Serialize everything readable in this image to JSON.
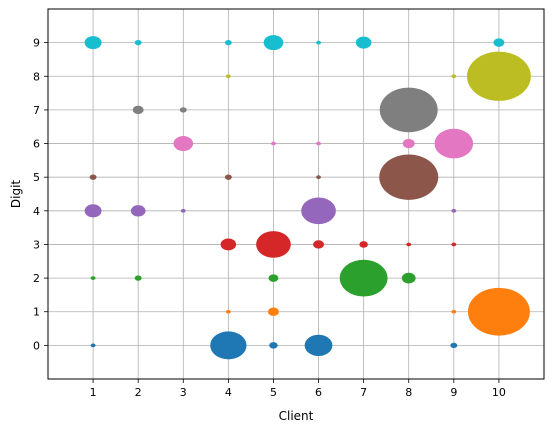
{
  "chart_data": {
    "type": "scatter",
    "title": "",
    "xlabel": "Client",
    "ylabel": "Digit",
    "xlim": [
      0,
      11
    ],
    "ylim": [
      -1,
      10
    ],
    "x_ticks": [
      1,
      2,
      3,
      4,
      5,
      6,
      7,
      8,
      9,
      10
    ],
    "y_ticks": [
      0,
      1,
      2,
      3,
      4,
      5,
      6,
      7,
      8,
      9
    ],
    "grid": true,
    "size_encoding": "marker area proportional to sample count",
    "series": [
      {
        "digit": 0,
        "color": "#1f77b4",
        "points": [
          {
            "x": 1,
            "size": 1
          },
          {
            "x": 4,
            "size": 55
          },
          {
            "x": 5,
            "size": 3
          },
          {
            "x": 6,
            "size": 32
          },
          {
            "x": 9,
            "size": 2
          }
        ]
      },
      {
        "digit": 1,
        "color": "#ff7f0e",
        "points": [
          {
            "x": 4,
            "size": 1
          },
          {
            "x": 5,
            "size": 5
          },
          {
            "x": 9,
            "size": 1
          },
          {
            "x": 10,
            "size": 160
          }
        ]
      },
      {
        "digit": 2,
        "color": "#2ca02c",
        "points": [
          {
            "x": 1,
            "size": 1
          },
          {
            "x": 2,
            "size": 2
          },
          {
            "x": 5,
            "size": 4
          },
          {
            "x": 7,
            "size": 95
          },
          {
            "x": 8,
            "size": 8
          }
        ]
      },
      {
        "digit": 3,
        "color": "#d62728",
        "points": [
          {
            "x": 4,
            "size": 10
          },
          {
            "x": 5,
            "size": 50
          },
          {
            "x": 6,
            "size": 5
          },
          {
            "x": 7,
            "size": 3
          },
          {
            "x": 8,
            "size": 1
          },
          {
            "x": 9,
            "size": 1
          }
        ]
      },
      {
        "digit": 4,
        "color": "#9467bd",
        "points": [
          {
            "x": 1,
            "size": 12
          },
          {
            "x": 2,
            "size": 9
          },
          {
            "x": 3,
            "size": 1
          },
          {
            "x": 6,
            "size": 50
          },
          {
            "x": 9,
            "size": 1
          }
        ]
      },
      {
        "digit": 5,
        "color": "#8c564b",
        "points": [
          {
            "x": 1,
            "size": 2
          },
          {
            "x": 4,
            "size": 2
          },
          {
            "x": 6,
            "size": 1
          },
          {
            "x": 8,
            "size": 145
          }
        ]
      },
      {
        "digit": 6,
        "color": "#e377c2",
        "points": [
          {
            "x": 3,
            "size": 16
          },
          {
            "x": 5,
            "size": 1
          },
          {
            "x": 6,
            "size": 1
          },
          {
            "x": 8,
            "size": 6
          },
          {
            "x": 9,
            "size": 62
          }
        ]
      },
      {
        "digit": 7,
        "color": "#7f7f7f",
        "points": [
          {
            "x": 2,
            "size": 5
          },
          {
            "x": 3,
            "size": 2
          },
          {
            "x": 8,
            "size": 140
          }
        ]
      },
      {
        "digit": 8,
        "color": "#bcbd22",
        "points": [
          {
            "x": 4,
            "size": 1
          },
          {
            "x": 9,
            "size": 1
          },
          {
            "x": 10,
            "size": 170
          }
        ]
      },
      {
        "digit": 9,
        "color": "#17becf",
        "points": [
          {
            "x": 1,
            "size": 12
          },
          {
            "x": 2,
            "size": 2
          },
          {
            "x": 4,
            "size": 2
          },
          {
            "x": 5,
            "size": 16
          },
          {
            "x": 6,
            "size": 1
          },
          {
            "x": 7,
            "size": 10
          },
          {
            "x": 10,
            "size": 5
          }
        ]
      }
    ]
  }
}
